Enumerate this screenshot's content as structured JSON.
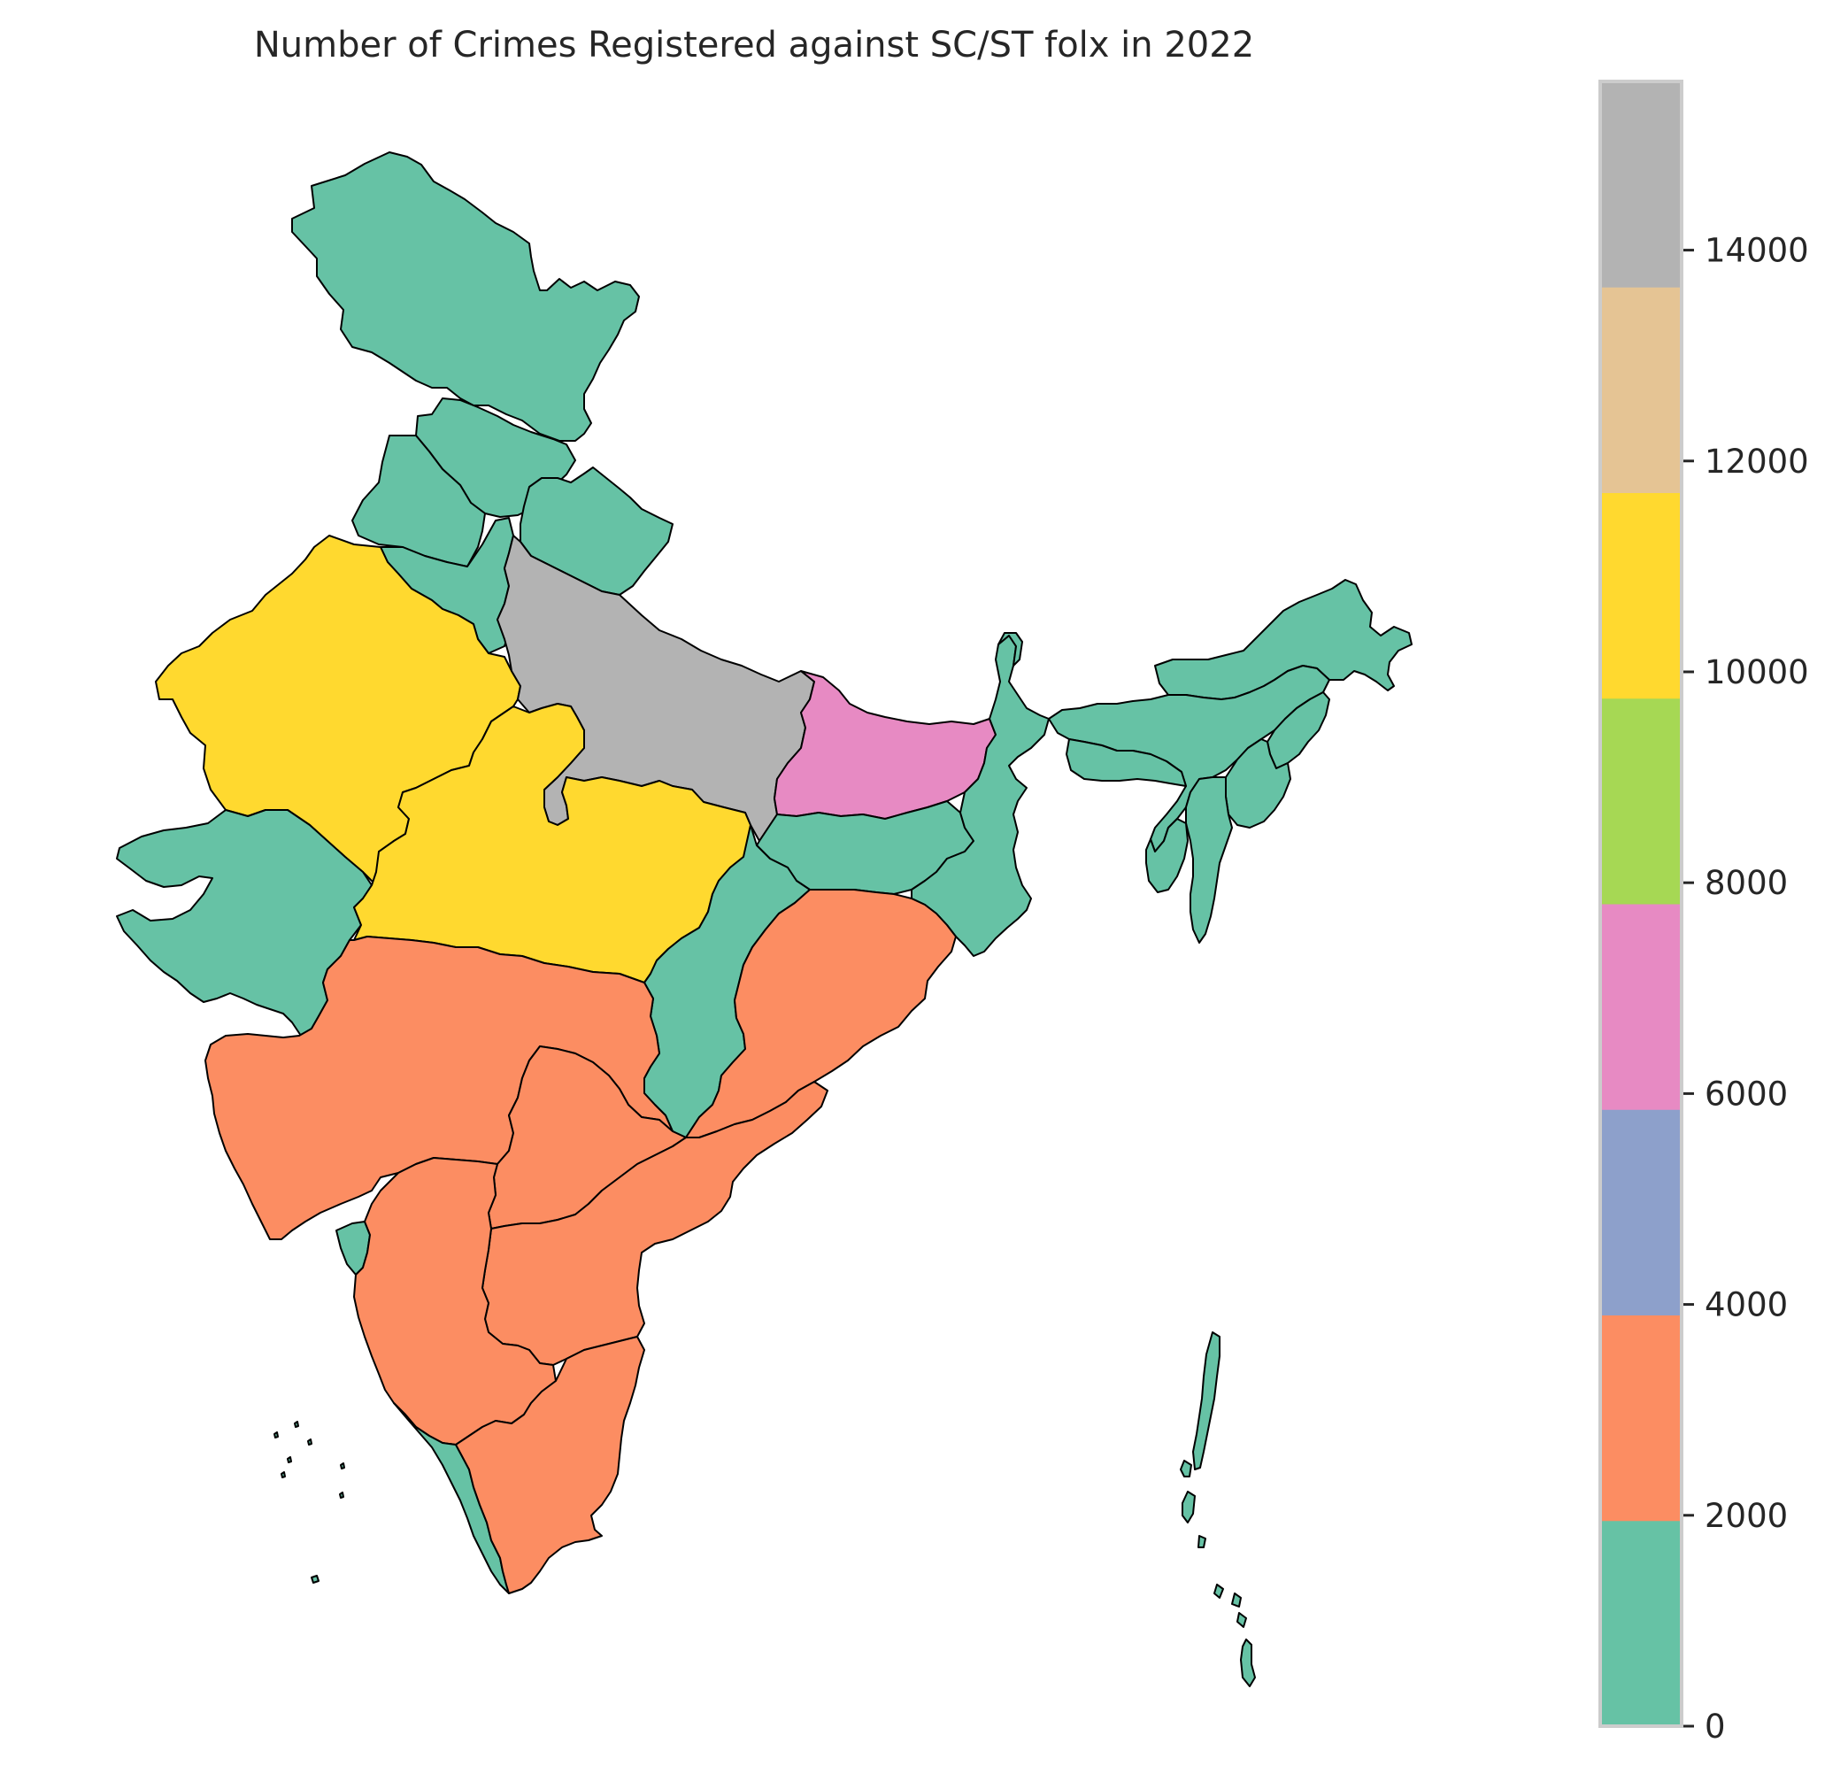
{
  "title": "Number of Crimes Registered against SC/ST folx in 2022",
  "colorbar": {
    "vmin": 0,
    "vmax": 15600,
    "bins": [
      {
        "from": 0,
        "to": 1950,
        "color": "#66c2a5"
      },
      {
        "from": 1950,
        "to": 3900,
        "color": "#fc8d62"
      },
      {
        "from": 3900,
        "to": 5850,
        "color": "#8da0cb"
      },
      {
        "from": 5850,
        "to": 7800,
        "color": "#e78ac3"
      },
      {
        "from": 7800,
        "to": 9750,
        "color": "#a6d854"
      },
      {
        "from": 9750,
        "to": 11700,
        "color": "#ffd92f"
      },
      {
        "from": 11700,
        "to": 13650,
        "color": "#e5c494"
      },
      {
        "from": 13650,
        "to": 15600,
        "color": "#b3b3b3"
      }
    ],
    "ticks": [
      {
        "value": 0,
        "label": "0"
      },
      {
        "value": 2000,
        "label": "2000"
      },
      {
        "value": 4000,
        "label": "4000"
      },
      {
        "value": 6000,
        "label": "6000"
      },
      {
        "value": 8000,
        "label": "8000"
      },
      {
        "value": 10000,
        "label": "10000"
      },
      {
        "value": 12000,
        "label": "12000"
      },
      {
        "value": 14000,
        "label": "14000"
      }
    ]
  },
  "regions": [
    {
      "name": "Jammu and Kashmir",
      "bin": 0
    },
    {
      "name": "Himachal Pradesh",
      "bin": 0
    },
    {
      "name": "Punjab",
      "bin": 0
    },
    {
      "name": "Haryana",
      "bin": 0
    },
    {
      "name": "Uttarakhand",
      "bin": 0
    },
    {
      "name": "Uttar Pradesh",
      "bin": 7
    },
    {
      "name": "Rajasthan",
      "bin": 5
    },
    {
      "name": "Madhya Pradesh",
      "bin": 5
    },
    {
      "name": "Gujarat",
      "bin": 0
    },
    {
      "name": "Bihar",
      "bin": 3
    },
    {
      "name": "Jharkhand",
      "bin": 0
    },
    {
      "name": "West Bengal",
      "bin": 0
    },
    {
      "name": "Chhattisgarh",
      "bin": 0
    },
    {
      "name": "Maharashtra",
      "bin": 1
    },
    {
      "name": "Telangana",
      "bin": 1
    },
    {
      "name": "Andhra Pradesh",
      "bin": 1
    },
    {
      "name": "Odisha",
      "bin": 1
    },
    {
      "name": "Karnataka",
      "bin": 1
    },
    {
      "name": "Tamil Nadu",
      "bin": 1
    },
    {
      "name": "Goa",
      "bin": 0
    },
    {
      "name": "Kerala",
      "bin": 0
    },
    {
      "name": "Sikkim",
      "bin": 0
    },
    {
      "name": "Assam",
      "bin": 0
    },
    {
      "name": "Arunachal Pradesh",
      "bin": 0
    },
    {
      "name": "Nagaland",
      "bin": 0
    },
    {
      "name": "Manipur",
      "bin": 0
    },
    {
      "name": "Mizoram",
      "bin": 0
    },
    {
      "name": "Tripura",
      "bin": 0
    },
    {
      "name": "Meghalaya",
      "bin": 0
    },
    {
      "name": "Andaman and Nicobar Islands",
      "bin": 0
    },
    {
      "name": "Lakshadweep",
      "bin": 0
    }
  ]
}
